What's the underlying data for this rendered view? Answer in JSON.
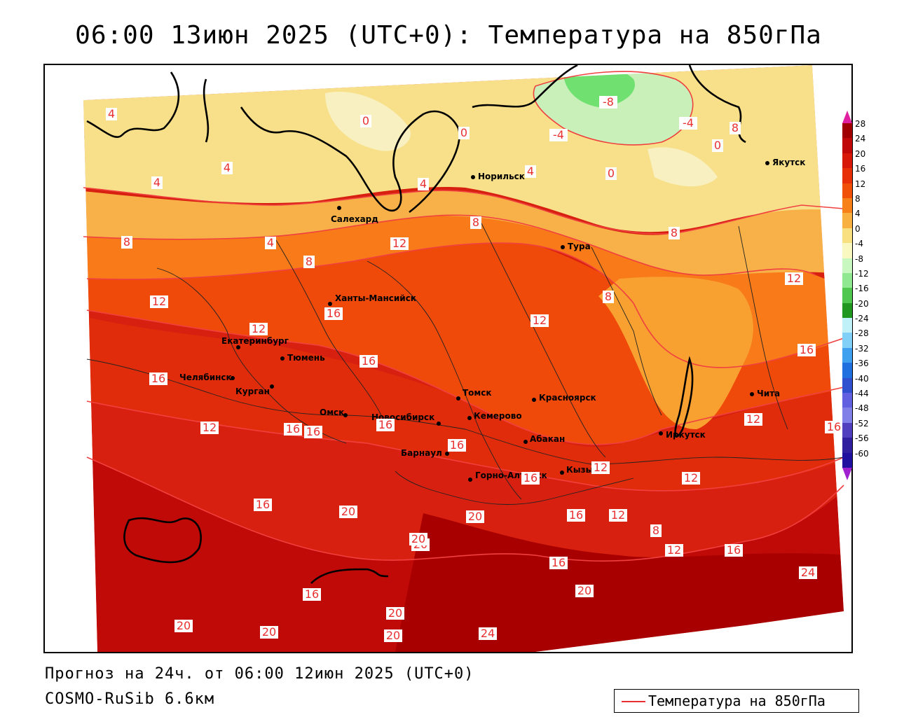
{
  "title": "06:00 13июн 2025 (UTC+0): Температура на 850гПа",
  "footer": {
    "forecast": "Прогноз на 24ч. от 06:00 12июн 2025 (UTC+0)",
    "model": "COSMO-RuSib 6.6км"
  },
  "legend": {
    "label": "Температура на 850гПа",
    "line_color": "#e83030"
  },
  "colorbar": {
    "ticks": [
      "28",
      "24",
      "20",
      "16",
      "12",
      "8",
      "4",
      "0",
      "-4",
      "-8",
      "-12",
      "-16",
      "-20",
      "-24",
      "-28",
      "-32",
      "-36",
      "-40",
      "-44",
      "-48",
      "-52",
      "-56",
      "-60"
    ],
    "colors": [
      "#a00000",
      "#c00808",
      "#d81808",
      "#e83008",
      "#f05008",
      "#f88018",
      "#f8b040",
      "#f8e080",
      "#f8f8c0",
      "#c8f8c0",
      "#90e890",
      "#50c850",
      "#209820",
      "#c0f0f8",
      "#80d0f8",
      "#40a0f0",
      "#2070e0",
      "#3050d0",
      "#6060e0",
      "#8080e8",
      "#5040c0",
      "#3020a0",
      "#2010a0"
    ]
  },
  "cities": [
    {
      "name": "Норильск"
    },
    {
      "name": "Якутск"
    },
    {
      "name": "Салехард"
    },
    {
      "name": "Тура"
    },
    {
      "name": "Ханты-Мансийск"
    },
    {
      "name": "Екатеринбург"
    },
    {
      "name": "Тюмень"
    },
    {
      "name": "Челябинск"
    },
    {
      "name": "Курган"
    },
    {
      "name": "Омск"
    },
    {
      "name": "Новосибирск"
    },
    {
      "name": "Томск"
    },
    {
      "name": "Кемерово"
    },
    {
      "name": "Красноярск"
    },
    {
      "name": "Барнаул"
    },
    {
      "name": "Абакан"
    },
    {
      "name": "Иркутск"
    },
    {
      "name": "Чита"
    },
    {
      "name": "Горно-Алтайск"
    },
    {
      "name": "Кызыл"
    }
  ],
  "isotherm_labels": [
    "4",
    "0",
    "0",
    "-8",
    "0",
    "8",
    "-4",
    "-4",
    "0",
    "4",
    "4",
    "4",
    "4",
    "8",
    "12",
    "8",
    "4",
    "8",
    "8",
    "12",
    "16",
    "12",
    "12",
    "8",
    "12",
    "16",
    "16",
    "16",
    "16",
    "16",
    "12",
    "16",
    "16",
    "16",
    "12",
    "12",
    "16",
    "12",
    "16",
    "20",
    "20",
    "16",
    "12",
    "8",
    "16",
    "20",
    "16",
    "20",
    "12",
    "16",
    "20",
    "20",
    "20",
    "24",
    "24",
    "20",
    "20"
  ]
}
